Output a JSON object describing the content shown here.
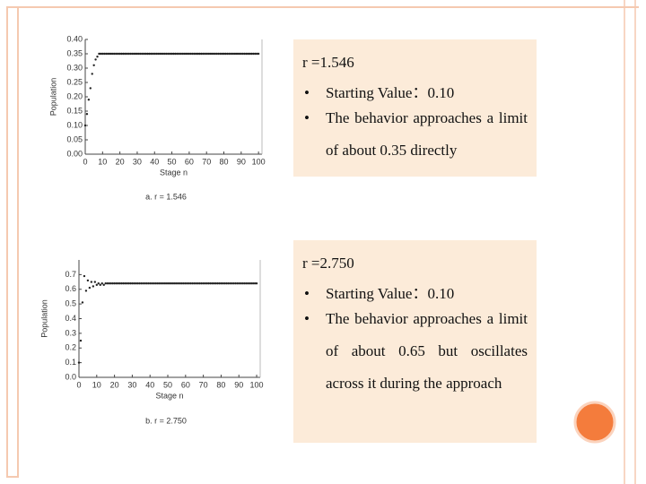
{
  "chart_data": [
    {
      "type": "scatter",
      "ylabel": "Population",
      "xlabel": "Stage n",
      "caption": "a. r = 1.546",
      "color": "#222222",
      "xlim": [
        0,
        102
      ],
      "ylim": [
        0,
        0.4
      ],
      "xticks": [
        0,
        10,
        20,
        30,
        40,
        50,
        60,
        70,
        80,
        90,
        100
      ],
      "yticks": [
        {
          "value": 0,
          "label": "0.00"
        },
        0.05,
        {
          "value": 0.1,
          "label": "0.10"
        },
        0.15,
        {
          "value": 0.2,
          "label": "0.20"
        },
        0.25,
        {
          "value": 0.3,
          "label": "0.30"
        },
        0.35,
        {
          "value": 0.4,
          "label": "0.40"
        }
      ],
      "x": [
        0,
        1,
        2,
        3,
        4,
        5,
        6,
        7,
        8,
        9,
        10,
        11,
        12,
        13,
        14,
        15,
        16,
        17,
        18,
        19,
        20,
        21,
        22,
        23,
        24,
        25,
        26,
        27,
        28,
        29,
        30,
        31,
        32,
        33,
        34,
        35,
        36,
        37,
        38,
        39,
        40,
        41,
        42,
        43,
        44,
        45,
        46,
        47,
        48,
        49,
        50,
        51,
        52,
        53,
        54,
        55,
        56,
        57,
        58,
        59,
        60,
        61,
        62,
        63,
        64,
        65,
        66,
        67,
        68,
        69,
        70,
        71,
        72,
        73,
        74,
        75,
        76,
        77,
        78,
        79,
        80,
        81,
        82,
        83,
        84,
        85,
        86,
        87,
        88,
        89,
        90,
        91,
        92,
        93,
        94,
        95,
        96,
        97,
        98,
        99,
        100
      ],
      "values": [
        0.1,
        0.14,
        0.19,
        0.23,
        0.28,
        0.31,
        0.33,
        0.34,
        0.35,
        0.35,
        0.35,
        0.35,
        0.35,
        0.35,
        0.35,
        0.35,
        0.35,
        0.35,
        0.35,
        0.35,
        0.35,
        0.35,
        0.35,
        0.35,
        0.35,
        0.35,
        0.35,
        0.35,
        0.35,
        0.35,
        0.35,
        0.35,
        0.35,
        0.35,
        0.35,
        0.35,
        0.35,
        0.35,
        0.35,
        0.35,
        0.35,
        0.35,
        0.35,
        0.35,
        0.35,
        0.35,
        0.35,
        0.35,
        0.35,
        0.35,
        0.35,
        0.35,
        0.35,
        0.35,
        0.35,
        0.35,
        0.35,
        0.35,
        0.35,
        0.35,
        0.35,
        0.35,
        0.35,
        0.35,
        0.35,
        0.35,
        0.35,
        0.35,
        0.35,
        0.35,
        0.35,
        0.35,
        0.35,
        0.35,
        0.35,
        0.35,
        0.35,
        0.35,
        0.35,
        0.35,
        0.35,
        0.35,
        0.35,
        0.35,
        0.35,
        0.35,
        0.35,
        0.35,
        0.35,
        0.35,
        0.35,
        0.35,
        0.35,
        0.35,
        0.35,
        0.35,
        0.35,
        0.35,
        0.35,
        0.35,
        0.35
      ]
    },
    {
      "type": "scatter",
      "ylabel": "Population",
      "xlabel": "Stage n",
      "caption": "b. r = 2.750",
      "color": "#222222",
      "xlim": [
        0,
        102
      ],
      "ylim": [
        0,
        0.8
      ],
      "xticks": [
        0,
        10,
        20,
        30,
        40,
        50,
        60,
        70,
        80,
        90,
        100
      ],
      "yticks": [
        {
          "value": 0,
          "label": "0.0"
        },
        0.1,
        0.2,
        0.3,
        0.4,
        0.5,
        0.6,
        0.7
      ],
      "x": [
        0,
        1,
        2,
        3,
        4,
        5,
        6,
        7,
        8,
        9,
        10,
        11,
        12,
        13,
        14,
        15,
        16,
        17,
        18,
        19,
        20,
        21,
        22,
        23,
        24,
        25,
        26,
        27,
        28,
        29,
        30,
        31,
        32,
        33,
        34,
        35,
        36,
        37,
        38,
        39,
        40,
        41,
        42,
        43,
        44,
        45,
        46,
        47,
        48,
        49,
        50,
        51,
        52,
        53,
        54,
        55,
        56,
        57,
        58,
        59,
        60,
        61,
        62,
        63,
        64,
        65,
        66,
        67,
        68,
        69,
        70,
        71,
        72,
        73,
        74,
        75,
        76,
        77,
        78,
        79,
        80,
        81,
        82,
        83,
        84,
        85,
        86,
        87,
        88,
        89,
        90,
        91,
        92,
        93,
        94,
        95,
        96,
        97,
        98,
        99,
        100
      ],
      "values": [
        0.1,
        0.25,
        0.51,
        0.69,
        0.59,
        0.66,
        0.61,
        0.65,
        0.62,
        0.65,
        0.63,
        0.64,
        0.63,
        0.64,
        0.63,
        0.64,
        0.64,
        0.64,
        0.64,
        0.64,
        0.64,
        0.64,
        0.64,
        0.64,
        0.64,
        0.64,
        0.64,
        0.64,
        0.64,
        0.64,
        0.64,
        0.64,
        0.64,
        0.64,
        0.64,
        0.64,
        0.64,
        0.64,
        0.64,
        0.64,
        0.64,
        0.64,
        0.64,
        0.64,
        0.64,
        0.64,
        0.64,
        0.64,
        0.64,
        0.64,
        0.64,
        0.64,
        0.64,
        0.64,
        0.64,
        0.64,
        0.64,
        0.64,
        0.64,
        0.64,
        0.64,
        0.64,
        0.64,
        0.64,
        0.64,
        0.64,
        0.64,
        0.64,
        0.64,
        0.64,
        0.64,
        0.64,
        0.64,
        0.64,
        0.64,
        0.64,
        0.64,
        0.64,
        0.64,
        0.64,
        0.64,
        0.64,
        0.64,
        0.64,
        0.64,
        0.64,
        0.64,
        0.64,
        0.64,
        0.64,
        0.64,
        0.64,
        0.64,
        0.64,
        0.64,
        0.64,
        0.64,
        0.64,
        0.64,
        0.64,
        0.64
      ]
    }
  ],
  "text_boxes": [
    {
      "heading": "r =1.546",
      "bullets": [
        "Starting Value：0.10",
        "The behavior approaches a limit of about 0.35 directly"
      ]
    },
    {
      "heading": "r =2.750",
      "bullets": [
        "Starting Value：0.10",
        "The behavior approaches a limit of about 0.65 but oscillates across it during the approach"
      ]
    }
  ]
}
